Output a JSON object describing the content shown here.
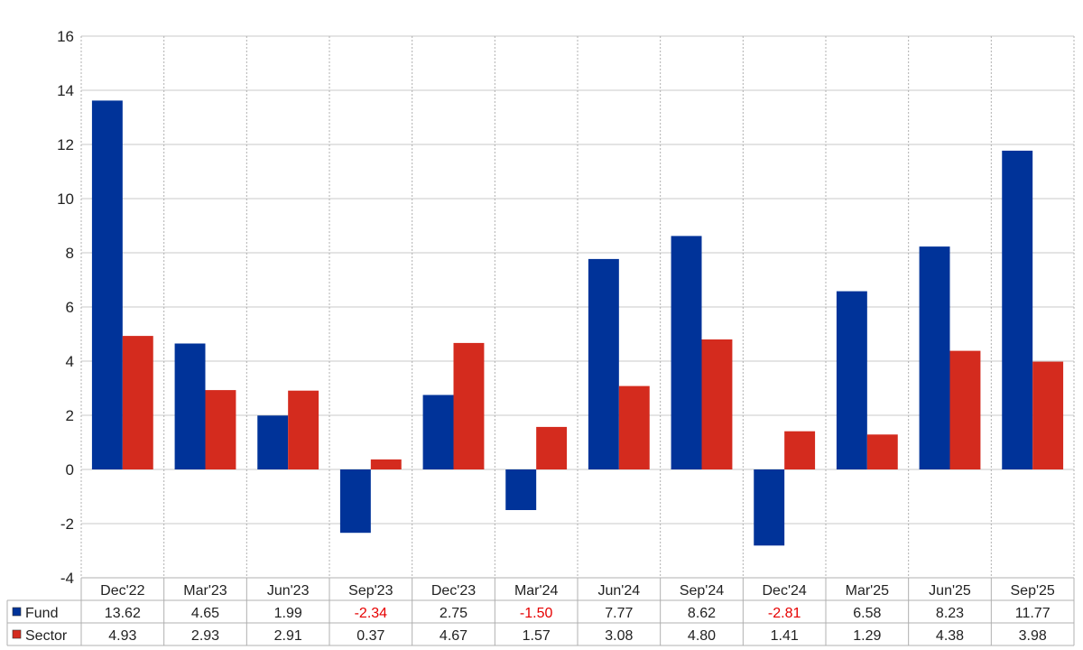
{
  "chart_data": {
    "type": "bar",
    "categories": [
      "Dec'22",
      "Mar'23",
      "Jun'23",
      "Sep'23",
      "Dec'23",
      "Mar'24",
      "Jun'24",
      "Sep'24",
      "Dec'24",
      "Mar'25",
      "Jun'25",
      "Sep'25"
    ],
    "series": [
      {
        "name": "Fund",
        "color": "#003399",
        "values": [
          13.62,
          4.65,
          1.99,
          -2.34,
          2.75,
          -1.5,
          7.77,
          8.62,
          -2.81,
          6.58,
          8.23,
          11.77
        ],
        "labels": [
          "13.62",
          "4.65",
          "1.99",
          "-2.34",
          "2.75",
          "-1.50",
          "7.77",
          "8.62",
          "-2.81",
          "6.58",
          "8.23",
          "11.77"
        ]
      },
      {
        "name": "Sector",
        "color": "#d42b1e",
        "values": [
          4.93,
          2.93,
          2.91,
          0.37,
          4.67,
          1.57,
          3.08,
          4.8,
          1.41,
          1.29,
          4.38,
          3.98
        ],
        "labels": [
          "4.93",
          "2.93",
          "2.91",
          "0.37",
          "4.67",
          "1.57",
          "3.08",
          "4.80",
          "1.41",
          "1.29",
          "4.38",
          "3.98"
        ]
      }
    ],
    "yticks": [
      "16",
      "14",
      "12",
      "10",
      "8",
      "6",
      "4",
      "2",
      "0",
      "-2",
      "-4"
    ],
    "ylim": [
      -4,
      16
    ],
    "negative_color": "#e60000",
    "grid": true,
    "legend": "data-table-left"
  }
}
